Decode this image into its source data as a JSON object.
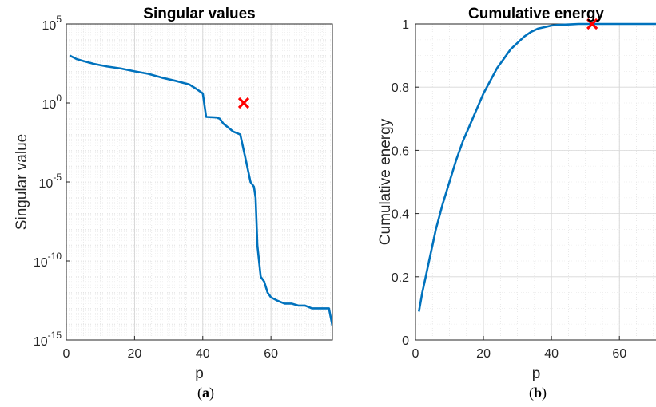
{
  "chart_data": [
    {
      "type": "line",
      "title": "Singular values",
      "xlabel": "p",
      "ylabel": "Singular value",
      "caption_letter": "a",
      "xlim": [
        0,
        78
      ],
      "ylim": [
        1e-15,
        100000.0
      ],
      "yscale": "log",
      "grid": true,
      "xticks": [
        "0",
        "20",
        "40",
        "60"
      ],
      "yticks": [
        {
          "base": "10",
          "exp": "5"
        },
        {
          "base": "10",
          "exp": "0"
        },
        {
          "base": "10",
          "exp": "-5"
        },
        {
          "base": "10",
          "exp": "-10"
        },
        {
          "base": "10",
          "exp": "-15"
        }
      ],
      "series": [
        {
          "color": "#0072BD",
          "x": [
            1,
            3,
            5,
            8,
            12,
            16,
            20,
            24,
            28,
            32,
            36,
            38,
            40,
            41,
            44,
            45,
            46,
            49,
            51,
            52,
            53,
            54,
            55,
            55.5,
            56,
            57,
            58,
            59,
            60,
            62,
            64,
            66,
            68,
            70,
            72,
            74,
            76,
            77,
            78
          ],
          "y": [
            1000.0,
            600.0,
            450.0,
            300.0,
            200.0,
            150.0,
            100.0,
            70.0,
            40.0,
            25.0,
            15.0,
            8,
            4,
            0.13,
            0.12,
            0.1,
            0.05,
            0.015,
            0.01,
            0.001,
            0.0001,
            1e-05,
            5e-06,
            1e-06,
            1e-09,
            1e-11,
            5e-12,
            1e-12,
            5e-13,
            3e-13,
            2e-13,
            2e-13,
            1.5e-13,
            1.5e-13,
            1e-13,
            1e-13,
            1e-13,
            1e-13,
            8e-15
          ]
        }
      ],
      "marker": {
        "x": 52,
        "y": 1,
        "symbol": "x",
        "color": "#FF0000"
      }
    },
    {
      "type": "line",
      "title": "Cumulative energy",
      "xlabel": "p",
      "ylabel": "Cumulative energy",
      "caption_letter": "b",
      "xlim": [
        0,
        71
      ],
      "ylim": [
        0,
        1
      ],
      "grid": true,
      "xticks": [
        "0",
        "20",
        "40",
        "60"
      ],
      "yticks": [
        "0",
        "0.2",
        "0.4",
        "0.6",
        "0.8",
        "1"
      ],
      "series": [
        {
          "color": "#0072BD",
          "x": [
            1,
            2,
            3,
            4,
            5,
            6,
            8,
            10,
            12,
            14,
            16,
            18,
            20,
            22,
            24,
            26,
            28,
            30,
            32,
            34,
            36,
            38,
            40,
            42,
            44,
            46,
            48,
            50,
            52,
            55,
            60,
            65,
            70,
            71
          ],
          "y": [
            0.09,
            0.15,
            0.2,
            0.25,
            0.3,
            0.35,
            0.43,
            0.5,
            0.57,
            0.63,
            0.68,
            0.73,
            0.78,
            0.82,
            0.86,
            0.89,
            0.92,
            0.94,
            0.96,
            0.975,
            0.985,
            0.99,
            0.995,
            0.997,
            0.998,
            0.999,
            1,
            1,
            1,
            1,
            1,
            1,
            1,
            1
          ]
        }
      ],
      "marker": {
        "x": 52,
        "y": 1,
        "symbol": "x",
        "color": "#FF0000"
      }
    }
  ]
}
